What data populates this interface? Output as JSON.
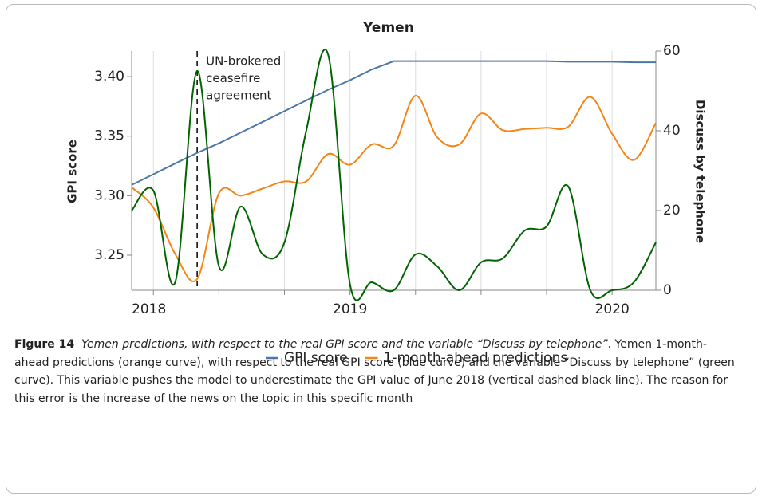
{
  "chart_data": {
    "type": "line",
    "title": "Yemen",
    "x": [
      2018.167,
      2018.25,
      2018.333,
      2018.417,
      2018.5,
      2018.583,
      2018.667,
      2018.75,
      2018.833,
      2018.917,
      2019.0,
      2019.083,
      2019.167,
      2019.25,
      2019.333,
      2019.417,
      2019.5,
      2019.583,
      2019.667,
      2019.75,
      2019.833,
      2019.917,
      2020.0,
      2020.083,
      2020.167
    ],
    "series": [
      {
        "name": "GPI score",
        "color": "#4c78a8",
        "curve": "linear",
        "values": [
          3.309,
          3.318,
          3.327,
          3.336,
          3.344,
          3.353,
          3.362,
          3.371,
          3.38,
          3.389,
          3.397,
          3.406,
          3.413,
          3.413,
          3.413,
          3.413,
          3.413,
          3.413,
          3.413,
          3.413,
          3.4125,
          3.4125,
          3.4125,
          3.412,
          3.412
        ]
      },
      {
        "name": "1-month-ahead predictions",
        "color": "#f58518",
        "curve": "smooth",
        "values": [
          3.307,
          3.29,
          3.251,
          3.23,
          3.302,
          3.3,
          3.306,
          3.312,
          3.312,
          3.335,
          3.326,
          3.343,
          3.342,
          3.384,
          3.349,
          3.343,
          3.369,
          3.355,
          3.356,
          3.357,
          3.358,
          3.383,
          3.352,
          3.33,
          3.361
        ]
      },
      {
        "color": "#006400",
        "curve": "smooth",
        "axis": "y2",
        "values": [
          20,
          25,
          2,
          55,
          6,
          21,
          9,
          12,
          40,
          59,
          1.5,
          2,
          0,
          9,
          6,
          0,
          7,
          8,
          15,
          16,
          26,
          0,
          0,
          2,
          12
        ]
      }
    ],
    "xlim": [
      2018.167,
      2020.167
    ],
    "xticks": [
      2018,
      2019,
      2020
    ],
    "xgrid": [
      2018.25,
      2018.5,
      2018.75,
      2019,
      2019.25,
      2019.5,
      2019.75,
      2020
    ],
    "ylabel": "GPI score",
    "ylim": [
      3.2205,
      3.4215
    ],
    "yticks": [
      3.25,
      {
        "value": 3.3,
        "label": "3.30"
      },
      3.35,
      {
        "value": 3.4,
        "label": "3.40"
      }
    ],
    "y2label": "Discuss by telephone",
    "y2color": "#006400",
    "y2lim": [
      0,
      60
    ],
    "y2ticks": [
      0,
      20,
      40,
      60
    ],
    "annotation": {
      "x": 2018.417,
      "lines": [
        "UN-brokered",
        "ceasefire",
        "agreement"
      ]
    },
    "legend": "bottom"
  },
  "caption": {
    "label": "Figure 14",
    "title": "Yemen predictions, with respect to the real GPI score and the variable “Discuss by telephone”",
    "text": ". Yemen 1-month-ahead predictions (orange curve), with respect to the real GPI score (blue curve) and the variable “Discuss by telephone” (green curve). This variable pushes the model to underestimate the GPI value of June 2018 (vertical dashed black line). The reason for this error is the increase of the news on the topic in this specific month"
  }
}
